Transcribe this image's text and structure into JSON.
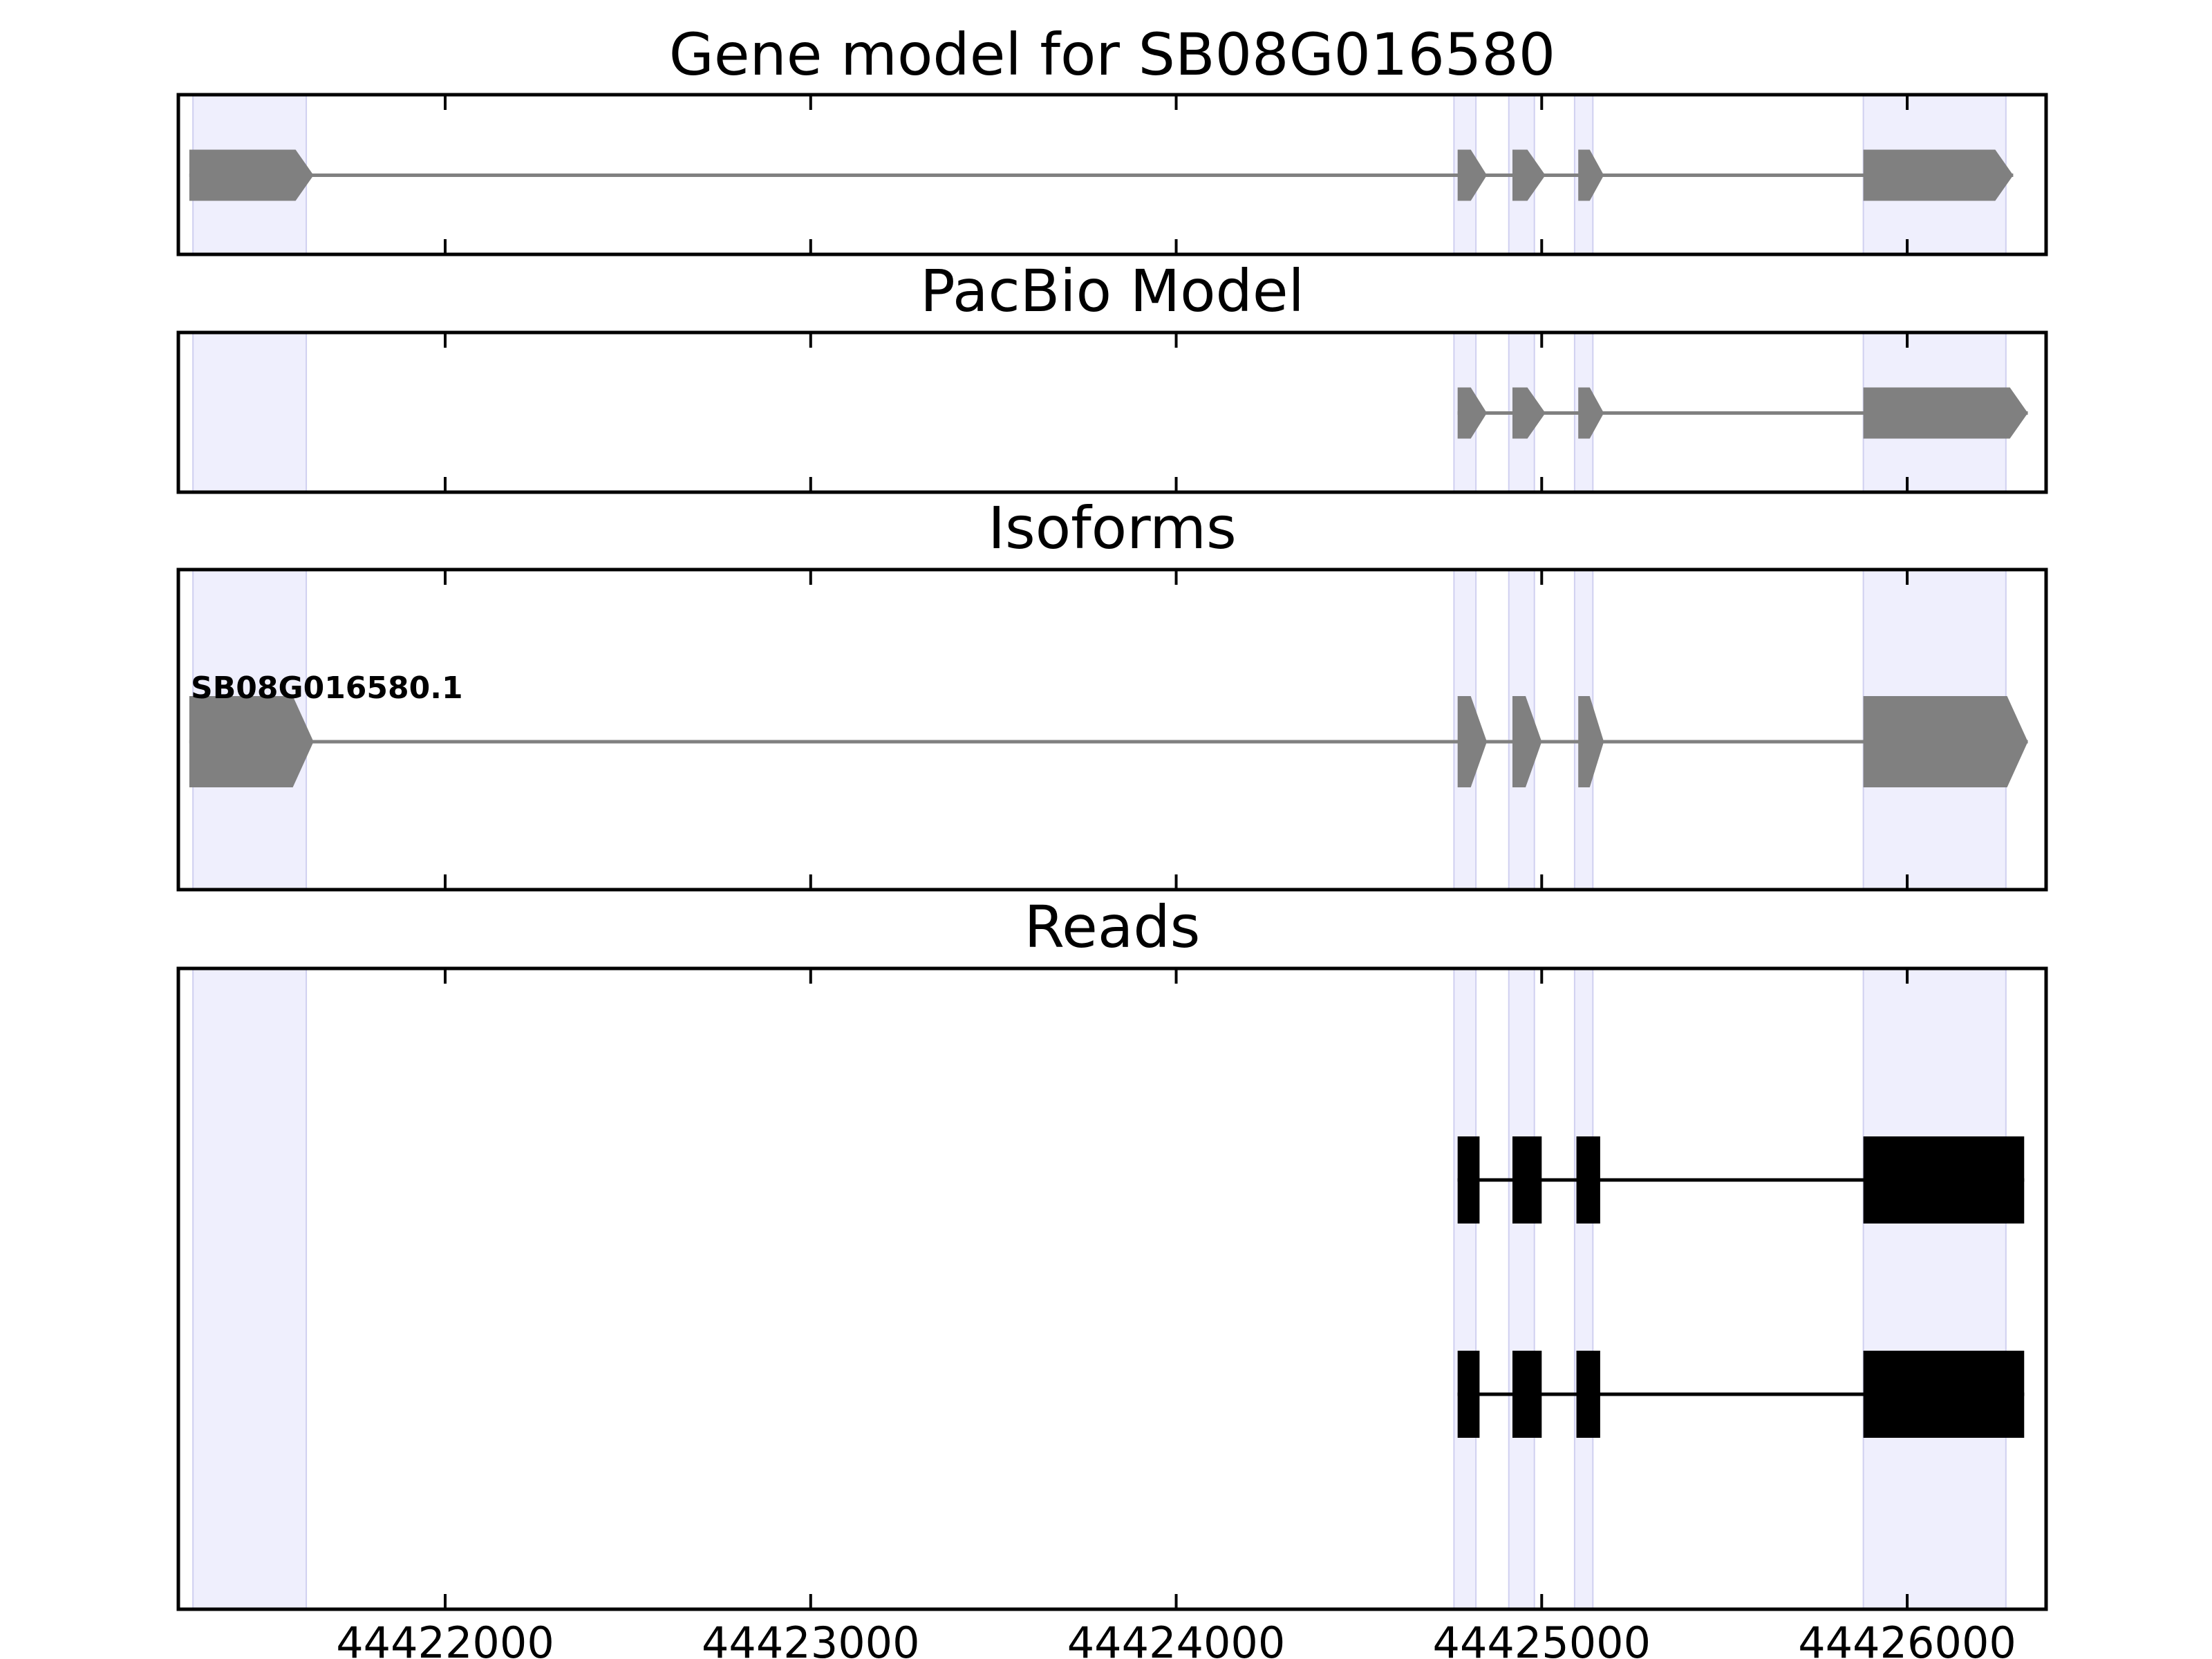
{
  "chart_data": {
    "type": "gene-track",
    "x_range": [
      44421270,
      44426380
    ],
    "x_ticks": [
      44422000,
      44423000,
      44424000,
      44425000,
      44426000
    ],
    "highlight_regions": [
      [
        44421310,
        44421620
      ],
      [
        44424760,
        44424820
      ],
      [
        44424910,
        44424980
      ],
      [
        44425090,
        44425140
      ],
      [
        44425880,
        44426270
      ]
    ],
    "panels": [
      {
        "id": "gene-model",
        "title": "Gene model for SB08G016580",
        "label": "",
        "style": "arrow",
        "color_key": "gray",
        "tracks": [
          {
            "exons": [
              [
                44421300,
                44421640
              ],
              [
                44424770,
                44424850
              ],
              [
                44424920,
                44425010
              ],
              [
                44425100,
                44425170
              ],
              [
                44425880,
                44426290
              ]
            ]
          }
        ]
      },
      {
        "id": "pacbio-model",
        "title": "PacBio Model",
        "label": "",
        "style": "arrow",
        "color_key": "gray",
        "tracks": [
          {
            "exons": [
              [
                44424770,
                44424850
              ],
              [
                44424920,
                44425010
              ],
              [
                44425100,
                44425170
              ],
              [
                44425880,
                44426330
              ]
            ]
          }
        ]
      },
      {
        "id": "isoforms",
        "title": "Isoforms",
        "label": "SB08G016580.1",
        "style": "arrow",
        "color_key": "gray",
        "tracks": [
          {
            "exons": [
              [
                44421300,
                44421640
              ],
              [
                44424770,
                44424850
              ],
              [
                44424920,
                44425000
              ],
              [
                44425100,
                44425170
              ],
              [
                44425880,
                44426330
              ]
            ]
          }
        ]
      },
      {
        "id": "reads",
        "title": "Reads",
        "label": "",
        "style": "box",
        "color_key": "black",
        "tracks": [
          {
            "exons": [
              [
                44424770,
                44424830
              ],
              [
                44424920,
                44425000
              ],
              [
                44425095,
                44425160
              ],
              [
                44425880,
                44426320
              ]
            ]
          },
          {
            "exons": [
              [
                44424770,
                44424830
              ],
              [
                44424920,
                44425000
              ],
              [
                44425095,
                44425160
              ],
              [
                44425880,
                44426320
              ]
            ]
          }
        ]
      }
    ]
  },
  "colors": {
    "gray": "#808080",
    "black": "#000000",
    "band_fill": "#e5e5fb",
    "band_edge": "#d0d0f0"
  }
}
